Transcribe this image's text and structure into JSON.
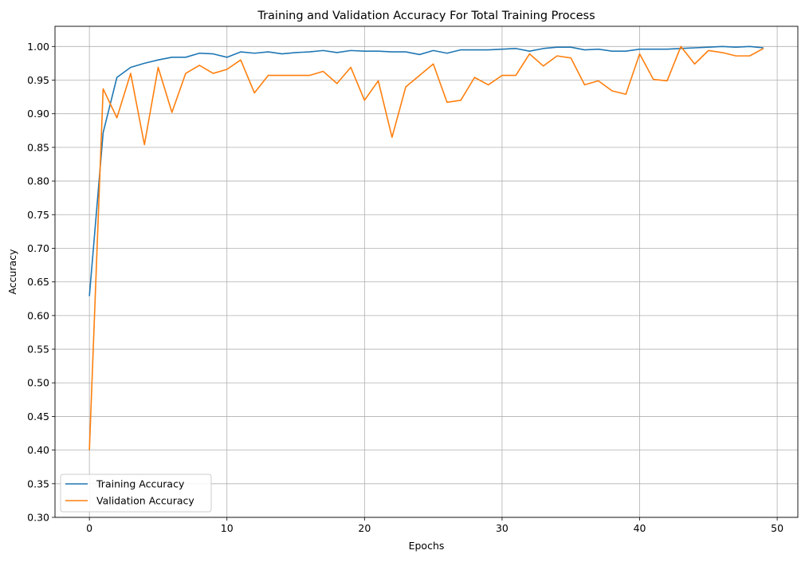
{
  "chart_data": {
    "type": "line",
    "title": "Training and Validation Accuracy For Total Training Process",
    "xlabel": "Epochs",
    "ylabel": "Accuracy",
    "xlim": [
      -2.5,
      51.5
    ],
    "ylim": [
      0.3,
      1.03
    ],
    "xticks": [
      0,
      10,
      20,
      30,
      40,
      50
    ],
    "yticks": [
      0.3,
      0.35,
      0.4,
      0.45,
      0.5,
      0.55,
      0.6,
      0.65,
      0.7,
      0.75,
      0.8,
      0.85,
      0.9,
      0.95,
      1.0
    ],
    "xtick_labels": [
      "0",
      "10",
      "20",
      "30",
      "40",
      "50"
    ],
    "ytick_labels": [
      "0.30",
      "0.35",
      "0.40",
      "0.45",
      "0.50",
      "0.55",
      "0.60",
      "0.65",
      "0.70",
      "0.75",
      "0.80",
      "0.85",
      "0.90",
      "0.95",
      "1.00"
    ],
    "grid": true,
    "legend_position": "lower-left",
    "x": [
      0,
      1,
      2,
      3,
      4,
      5,
      6,
      7,
      8,
      9,
      10,
      11,
      12,
      13,
      14,
      15,
      16,
      17,
      18,
      19,
      20,
      21,
      22,
      23,
      24,
      25,
      26,
      27,
      28,
      29,
      30,
      31,
      32,
      33,
      34,
      35,
      36,
      37,
      38,
      39,
      40,
      41,
      42,
      43,
      44,
      45,
      46,
      47,
      48,
      49
    ],
    "series": [
      {
        "name": "Training Accuracy",
        "color": "#1f77b4",
        "values": [
          0.629,
          0.872,
          0.954,
          0.969,
          0.975,
          0.98,
          0.984,
          0.984,
          0.99,
          0.989,
          0.984,
          0.992,
          0.99,
          0.992,
          0.989,
          0.991,
          0.992,
          0.994,
          0.991,
          0.994,
          0.993,
          0.993,
          0.992,
          0.992,
          0.988,
          0.994,
          0.99,
          0.995,
          0.995,
          0.995,
          0.996,
          0.997,
          0.993,
          0.997,
          0.999,
          0.999,
          0.995,
          0.996,
          0.993,
          0.993,
          0.996,
          0.996,
          0.996,
          0.997,
          0.998,
          0.999,
          1.0,
          0.999,
          1.0,
          0.998
        ]
      },
      {
        "name": "Validation Accuracy",
        "color": "#ff7f0e",
        "values": [
          0.4,
          0.937,
          0.894,
          0.96,
          0.854,
          0.969,
          0.902,
          0.96,
          0.972,
          0.96,
          0.966,
          0.98,
          0.931,
          0.957,
          0.957,
          0.957,
          0.957,
          0.963,
          0.945,
          0.969,
          0.92,
          0.949,
          0.865,
          0.94,
          0.957,
          0.974,
          0.917,
          0.92,
          0.954,
          0.943,
          0.957,
          0.957,
          0.989,
          0.971,
          0.986,
          0.983,
          0.943,
          0.949,
          0.934,
          0.929,
          0.989,
          0.951,
          0.949,
          1.0,
          0.974,
          0.994,
          0.991,
          0.986,
          0.986,
          0.997
        ]
      }
    ]
  }
}
